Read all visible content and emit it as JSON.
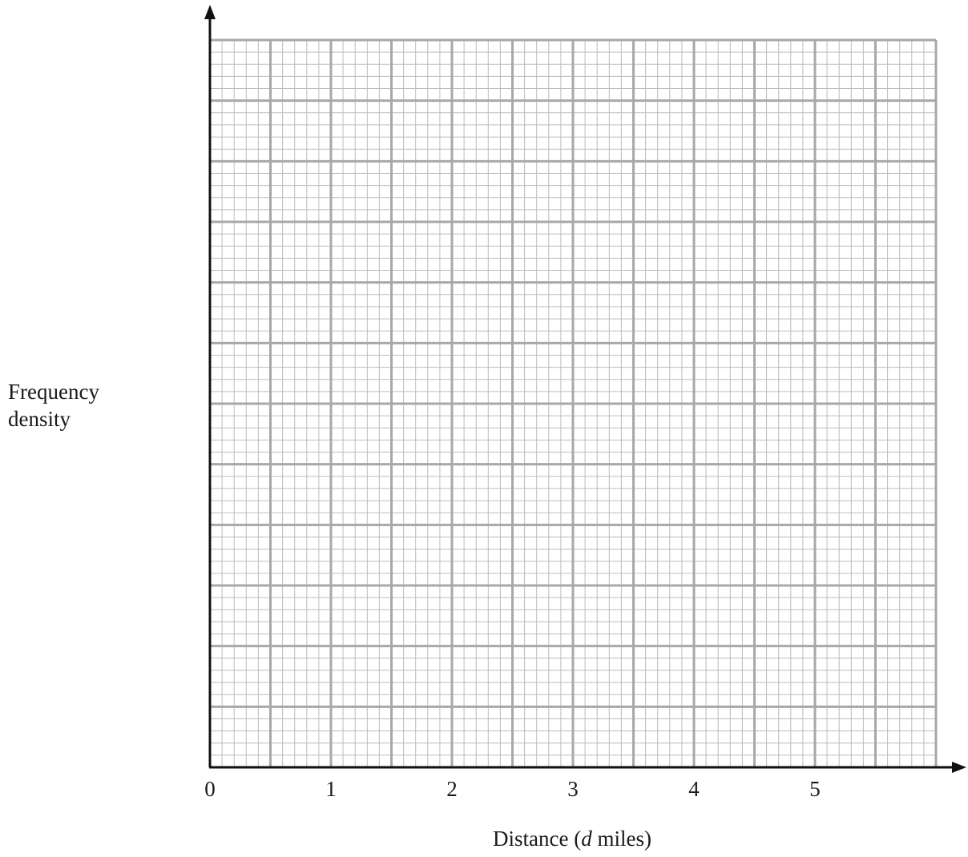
{
  "chart_data": {
    "type": "histogram",
    "title": "",
    "xlabel": "Distance (d miles)",
    "xlabel_parts": {
      "prefix": "Distance (",
      "italic": "d",
      "suffix": " miles)"
    },
    "ylabel": "Frequency density",
    "ylabel_lines": [
      "Frequency",
      "density"
    ],
    "xlim": [
      0,
      6
    ],
    "x_ticks": [
      "0",
      "1",
      "2",
      "3",
      "4",
      "5"
    ],
    "y_ticks": [],
    "series": [],
    "grid": true,
    "grid_major_step_x": 0.5,
    "grid_minor_step_x": 0.1,
    "grid_rows_major": 12,
    "grid_rows_minor_per_major": 5
  },
  "colors": {
    "axis": "#111111",
    "grid_major": "#a8a8a8",
    "grid_minor": "#bdbdbd",
    "text": "#1a1a1a"
  }
}
